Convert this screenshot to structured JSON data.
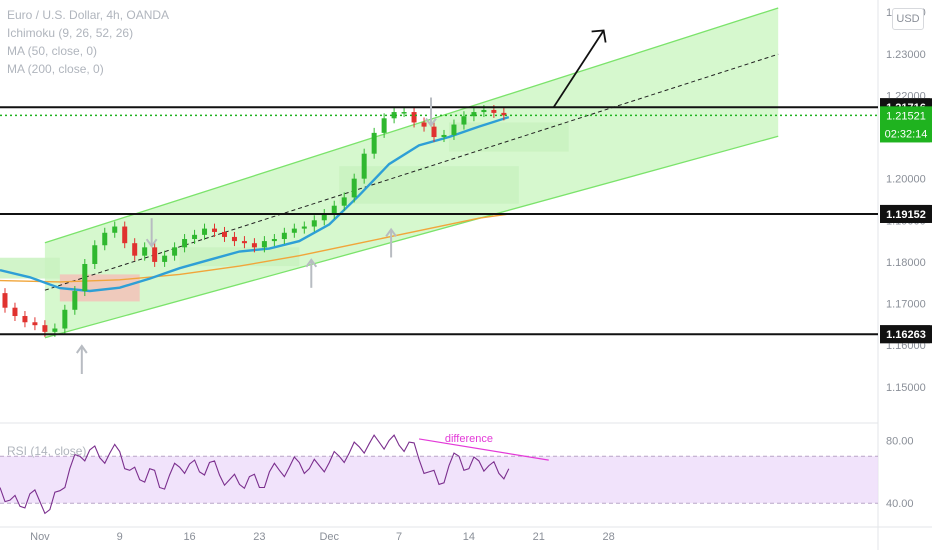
{
  "legend": {
    "title": "Euro / U.S. Dollar, 4h, OANDA",
    "ichimoku": "Ichimoku (9, 26, 52, 26)",
    "ma50": "MA (50, close, 0)",
    "ma200": "MA (200, close, 0)",
    "rsi": "RSI (14, close)"
  },
  "currency_button": "USD",
  "colors": {
    "up": "#2fb82f",
    "down": "#e0322f",
    "channel": "#7be36b",
    "channel_fill": "#c8f5be",
    "ma50": "#2e9fd6",
    "ma200": "#f1a53a",
    "cloud_green": "#c9f2bf",
    "cloud_red": "#f3c2b9",
    "rsi_line": "#7b2f8e",
    "rsi_band": "#eedcfa",
    "annotation": "#e33ad8",
    "arrow_gray": "#b8bcc2",
    "current_price_bg": "#1fb31f"
  },
  "chart_data": {
    "type": "candlestick",
    "symbol": "Euro / U.S. Dollar",
    "interval": "4h",
    "x_ticks": [
      "Nov",
      "9",
      "16",
      "23",
      "Dec",
      "7",
      "14",
      "21",
      "28"
    ],
    "x_tick_days": [
      1,
      9,
      16,
      23,
      30,
      37,
      44,
      51,
      58
    ],
    "x_range_days": [
      -3,
      85
    ],
    "y_ticks": [
      "1.15000",
      "1.16000",
      "1.17000",
      "1.18000",
      "1.19000",
      "1.20000",
      "1.21000",
      "1.22000",
      "1.23000",
      "1.24000"
    ],
    "y_range": [
      1.1425,
      1.241
    ],
    "levels": [
      {
        "label": "1.21716",
        "value": 1.21716
      },
      {
        "label": "1.19152",
        "value": 1.19152
      },
      {
        "label": "1.16263",
        "value": 1.16263
      }
    ],
    "current_price": {
      "label": "1.21521",
      "value": 1.21521,
      "countdown": "02:32:14"
    },
    "channel": {
      "lower": [
        [
          1.5,
          1.1618
        ],
        [
          75.0,
          1.2102
        ]
      ],
      "upper": [
        [
          1.5,
          1.1846
        ],
        [
          75.0,
          1.241
        ]
      ],
      "mid": [
        [
          1.5,
          1.1732
        ],
        [
          75.0,
          1.2299
        ]
      ],
      "fill_from_day": 1.5,
      "fill_to_day": 75.0
    },
    "projection_arrow": [
      [
        52.5,
        1.2172
      ],
      [
        57.5,
        1.2356
      ]
    ],
    "marker_arrows": [
      {
        "day": 5.2,
        "direction": "up",
        "value": 1.1598
      },
      {
        "day": 12.2,
        "direction": "down",
        "value": 1.1905
      },
      {
        "day": 28.2,
        "direction": "up",
        "value": 1.1805
      },
      {
        "day": 36.2,
        "direction": "up",
        "value": 1.1878
      },
      {
        "day": 40.2,
        "direction": "down",
        "value": 1.2195
      }
    ],
    "price": [
      [
        -3.0,
        1.1725
      ],
      [
        -2.0,
        1.169
      ],
      [
        -1.0,
        1.167
      ],
      [
        0.0,
        1.1655
      ],
      [
        1.0,
        1.1648
      ],
      [
        2.0,
        1.1632
      ],
      [
        3.0,
        1.164
      ],
      [
        4.0,
        1.1685
      ],
      [
        5.0,
        1.173
      ],
      [
        6.0,
        1.1795
      ],
      [
        7.0,
        1.184
      ],
      [
        8.0,
        1.187
      ],
      [
        9.0,
        1.1885
      ],
      [
        10.0,
        1.1845
      ],
      [
        11.0,
        1.1815
      ],
      [
        12.0,
        1.1835
      ],
      [
        13.0,
        1.18
      ],
      [
        14.0,
        1.1815
      ],
      [
        15.0,
        1.1835
      ],
      [
        16.0,
        1.1855
      ],
      [
        17.0,
        1.1865
      ],
      [
        18.0,
        1.188
      ],
      [
        19.0,
        1.1872
      ],
      [
        20.0,
        1.186
      ],
      [
        21.0,
        1.185
      ],
      [
        22.0,
        1.1845
      ],
      [
        23.0,
        1.1835
      ],
      [
        24.0,
        1.185
      ],
      [
        25.0,
        1.1855
      ],
      [
        26.0,
        1.187
      ],
      [
        27.0,
        1.188
      ],
      [
        28.0,
        1.1885
      ],
      [
        29.0,
        1.19
      ],
      [
        30.0,
        1.1915
      ],
      [
        31.0,
        1.1935
      ],
      [
        32.0,
        1.1955
      ],
      [
        33.0,
        1.2
      ],
      [
        34.0,
        1.206
      ],
      [
        35.0,
        1.211
      ],
      [
        36.0,
        1.2145
      ],
      [
        37.0,
        1.216
      ],
      [
        38.0,
        1.216
      ],
      [
        39.0,
        1.2135
      ],
      [
        40.0,
        1.2125
      ],
      [
        41.0,
        1.21
      ],
      [
        42.0,
        1.2105
      ],
      [
        43.0,
        1.213
      ],
      [
        44.0,
        1.215
      ],
      [
        45.0,
        1.216
      ],
      [
        46.0,
        1.2165
      ],
      [
        47.0,
        1.2158
      ],
      [
        48.0,
        1.2152
      ]
    ],
    "ma50": [
      [
        -3.0,
        1.178
      ],
      [
        0.0,
        1.1763
      ],
      [
        3.0,
        1.1737
      ],
      [
        6.0,
        1.173
      ],
      [
        9.0,
        1.1738
      ],
      [
        12.0,
        1.176
      ],
      [
        15.0,
        1.1785
      ],
      [
        18.0,
        1.1805
      ],
      [
        21.0,
        1.1825
      ],
      [
        24.0,
        1.1832
      ],
      [
        27.0,
        1.185
      ],
      [
        30.0,
        1.189
      ],
      [
        33.0,
        1.196
      ],
      [
        36.0,
        1.2035
      ],
      [
        39.0,
        1.208
      ],
      [
        42.0,
        1.21
      ],
      [
        45.0,
        1.2125
      ],
      [
        48.0,
        1.2148
      ]
    ],
    "ma200": [
      [
        -3.0,
        1.1755
      ],
      [
        3.0,
        1.1752
      ],
      [
        9.0,
        1.1757
      ],
      [
        15.0,
        1.177
      ],
      [
        21.0,
        1.179
      ],
      [
        27.0,
        1.1815
      ],
      [
        33.0,
        1.1845
      ],
      [
        39.0,
        1.1875
      ],
      [
        45.0,
        1.1905
      ],
      [
        48.0,
        1.1915
      ]
    ],
    "ichimoku_cloud": [
      {
        "color": "green",
        "from_day": -3,
        "to_day": 3,
        "top": 1.181,
        "bottom": 1.176
      },
      {
        "color": "red",
        "from_day": 3,
        "to_day": 11,
        "top": 1.177,
        "bottom": 1.1705
      },
      {
        "color": "green",
        "from_day": 15,
        "to_day": 27,
        "top": 1.1835,
        "bottom": 1.179
      },
      {
        "color": "green",
        "from_day": 31,
        "to_day": 49,
        "top": 1.203,
        "bottom": 1.194
      },
      {
        "color": "green",
        "from_day": 42,
        "to_day": 54,
        "top": 1.2135,
        "bottom": 1.2065
      }
    ],
    "rsi": {
      "y_ticks": [
        "80.00",
        "40.00"
      ],
      "y_range": [
        28,
        88
      ],
      "band": [
        40,
        70
      ],
      "annotation": "difference",
      "divergence_line": [
        [
          39.0,
          81.0
        ],
        [
          52.0,
          67.5
        ]
      ],
      "values": [
        [
          -3.0,
          50
        ],
        [
          -2.0,
          42
        ],
        [
          -1.0,
          38
        ],
        [
          0.0,
          46
        ],
        [
          1.0,
          41
        ],
        [
          2.0,
          36
        ],
        [
          3.0,
          48
        ],
        [
          4.0,
          62
        ],
        [
          5.0,
          70
        ],
        [
          6.0,
          74
        ],
        [
          7.0,
          69
        ],
        [
          8.0,
          72
        ],
        [
          9.0,
          73
        ],
        [
          10.0,
          61
        ],
        [
          11.0,
          55
        ],
        [
          12.0,
          62
        ],
        [
          13.0,
          50
        ],
        [
          14.0,
          58
        ],
        [
          15.0,
          63
        ],
        [
          16.0,
          65
        ],
        [
          17.0,
          60
        ],
        [
          18.0,
          66
        ],
        [
          19.0,
          58
        ],
        [
          20.0,
          55
        ],
        [
          21.0,
          52
        ],
        [
          22.0,
          57
        ],
        [
          23.0,
          50
        ],
        [
          24.0,
          60
        ],
        [
          25.0,
          61
        ],
        [
          26.0,
          63
        ],
        [
          27.0,
          66
        ],
        [
          28.0,
          62
        ],
        [
          29.0,
          64
        ],
        [
          30.0,
          66
        ],
        [
          31.0,
          70
        ],
        [
          32.0,
          72
        ],
        [
          33.0,
          76
        ],
        [
          34.0,
          78
        ],
        [
          35.0,
          79
        ],
        [
          36.0,
          80
        ],
        [
          37.0,
          77
        ],
        [
          38.0,
          79
        ],
        [
          39.0,
          68
        ],
        [
          40.0,
          60
        ],
        [
          41.0,
          52
        ],
        [
          42.0,
          64
        ],
        [
          43.0,
          70
        ],
        [
          44.0,
          62
        ],
        [
          45.0,
          67
        ],
        [
          46.0,
          64
        ],
        [
          47.0,
          59
        ],
        [
          48.0,
          62
        ]
      ]
    }
  }
}
